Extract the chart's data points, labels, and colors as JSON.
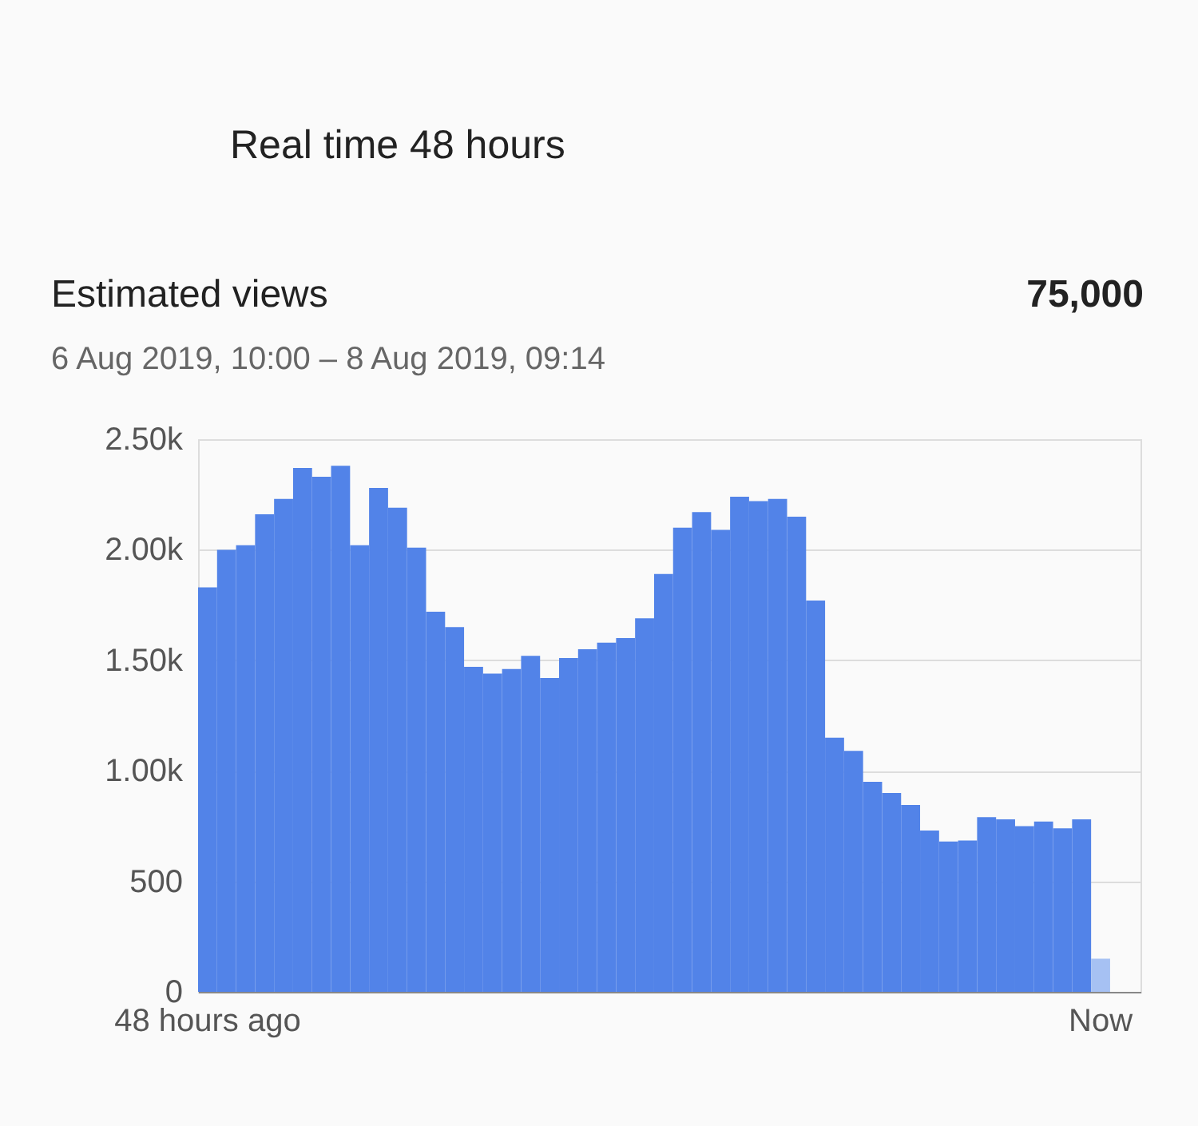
{
  "chart_data": {
    "type": "bar",
    "title": "Estimated views",
    "subtitle": "6 Aug 2019, 10:00 – 8 Aug 2019, 09:14",
    "annotations": [
      "Real time 48 hours",
      "75,000"
    ],
    "categories": [
      "48 hours ago",
      null,
      null,
      null,
      null,
      null,
      null,
      null,
      null,
      null,
      null,
      null,
      null,
      null,
      null,
      null,
      null,
      null,
      null,
      null,
      null,
      null,
      null,
      null,
      null,
      null,
      null,
      null,
      null,
      null,
      null,
      null,
      null,
      null,
      null,
      null,
      null,
      null,
      null,
      null,
      null,
      null,
      null,
      null,
      null,
      null,
      null,
      "Now"
    ],
    "values": [
      1830,
      2000,
      2020,
      2160,
      2230,
      2370,
      2330,
      2380,
      2020,
      2280,
      2190,
      2010,
      1720,
      1650,
      1470,
      1440,
      1460,
      1520,
      1420,
      1510,
      1550,
      1580,
      1600,
      1690,
      1890,
      2100,
      2170,
      2090,
      2240,
      2220,
      2230,
      2150,
      1770,
      1150,
      1090,
      950,
      900,
      845,
      730,
      680,
      685,
      790,
      780,
      750,
      770,
      740,
      780,
      150
    ],
    "colors": [
      "#5283e8",
      "#5283e8",
      "#5283e8",
      "#5283e8",
      "#5283e8",
      "#5283e8",
      "#5283e8",
      "#5283e8",
      "#5283e8",
      "#5283e8",
      "#5283e8",
      "#5283e8",
      "#5283e8",
      "#5283e8",
      "#5283e8",
      "#5283e8",
      "#5283e8",
      "#5283e8",
      "#5283e8",
      "#5283e8",
      "#5283e8",
      "#5283e8",
      "#5283e8",
      "#5283e8",
      "#5283e8",
      "#5283e8",
      "#5283e8",
      "#5283e8",
      "#5283e8",
      "#5283e8",
      "#5283e8",
      "#5283e8",
      "#5283e8",
      "#5283e8",
      "#5283e8",
      "#5283e8",
      "#5283e8",
      "#5283e8",
      "#5283e8",
      "#5283e8",
      "#5283e8",
      "#5283e8",
      "#5283e8",
      "#5283e8",
      "#5283e8",
      "#5283e8",
      "#5283e8",
      "#a6c1f3"
    ],
    "ylim": [
      0,
      2500
    ],
    "yticks": [
      0,
      500,
      {
        "value": 1000,
        "label": "1.00k"
      },
      {
        "value": 1500,
        "label": "1.50k"
      },
      {
        "value": 2000,
        "label": "2.00k"
      },
      {
        "value": 2500,
        "label": "2.50k"
      }
    ],
    "grid": "y",
    "legend": false
  }
}
